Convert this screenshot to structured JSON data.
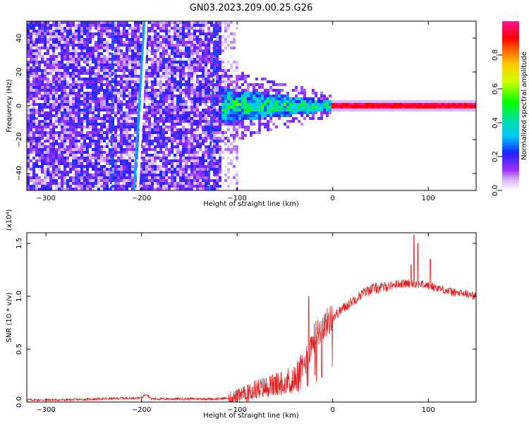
{
  "title": "GN03.2023.209.00.25.G26",
  "chart_data": [
    {
      "type": "heatmap",
      "xlabel": "Height of straight line (km)",
      "ylabel": "Frequency (Hz)",
      "xlim": [
        -320,
        150
      ],
      "ylim": [
        -50,
        50
      ],
      "x_ticks": [
        -300,
        -200,
        -100,
        0,
        100
      ],
      "y_ticks": [
        -40,
        -20,
        0,
        20,
        40
      ],
      "x_tick_labels": [
        "−300",
        "−200",
        "−100",
        "0",
        "100"
      ],
      "y_tick_labels": [
        "−40",
        "−20",
        "0",
        "20",
        "40"
      ],
      "colorbar": {
        "label": "Normalized spectral amplitude",
        "range": [
          0,
          1
        ],
        "ticks": [
          0.0,
          0.2,
          0.4,
          0.6,
          0.8
        ],
        "tick_labels": [
          "0.0",
          "0.2",
          "0.4",
          "0.6",
          "0.8"
        ],
        "colormap": [
          "#ffffff",
          "#9b30ff",
          "#2020ff",
          "#00c8ff",
          "#00ff00",
          "#ffff00",
          "#ff8000",
          "#ff0000",
          "#ff1493"
        ]
      },
      "regions": [
        {
          "x_range": [
            -320,
            -115
          ],
          "freq_range": [
            -50,
            50
          ],
          "amplitude": "0.1-0.3",
          "description_key": "broadband noise"
        },
        {
          "x_range": [
            -115,
            -100
          ],
          "freq_range": [
            -50,
            50
          ],
          "amplitude": "0.05-0.15"
        },
        {
          "x_range": [
            -115,
            0
          ],
          "freq_center": 0,
          "freq_halfwidth_start": 10,
          "freq_halfwidth_end": 3,
          "amplitude": "0.3-0.6"
        },
        {
          "x_range": [
            0,
            150
          ],
          "freq_center": 0,
          "freq_halfwidth": 2,
          "amplitude": "0.9-1.0"
        }
      ],
      "streaks": [
        {
          "x_start": -197,
          "x_end": -208,
          "amplitude": 0.35
        },
        {
          "x_start": -230,
          "x_end": -232,
          "amplitude": 0.25
        },
        {
          "x_start": -122,
          "x_end": -130,
          "amplitude": 0.25
        }
      ]
    },
    {
      "type": "line",
      "xlabel": "Height of straight line (km)",
      "ylabel": "SNR (10 * v/v)",
      "y_multiplier": "(x10⁴)",
      "xlim": [
        -320,
        150
      ],
      "ylim": [
        0,
        1.6
      ],
      "x_ticks": [
        -300,
        -200,
        -100,
        0,
        100
      ],
      "x_tick_labels": [
        "−300",
        "−200",
        "−100",
        "0",
        "100"
      ],
      "y_ticks": [
        0.0,
        0.5,
        1.0,
        1.5
      ],
      "y_tick_labels": [
        "0.0",
        "0.5",
        "1.0",
        "1.5"
      ],
      "color": "#e02020",
      "series": [
        {
          "x": [
            -320,
            -280,
            -240,
            -200,
            -195,
            -190,
            -150,
            -120,
            -105,
            -100,
            -90,
            -80,
            -70,
            -60,
            -50,
            -40,
            -30,
            -20,
            -10,
            0,
            10,
            20,
            30,
            40,
            50,
            60,
            70,
            80,
            90,
            100,
            110,
            120,
            130,
            140,
            150
          ],
          "values": [
            0.02,
            0.02,
            0.03,
            0.04,
            0.08,
            0.03,
            0.03,
            0.03,
            0.04,
            0.05,
            0.08,
            0.12,
            0.14,
            0.16,
            0.19,
            0.22,
            0.35,
            0.6,
            0.72,
            0.8,
            0.88,
            0.95,
            1.02,
            1.07,
            1.08,
            1.1,
            1.12,
            1.12,
            1.12,
            1.1,
            1.08,
            1.05,
            1.03,
            1.02,
            1.0
          ]
        }
      ],
      "spikes": [
        {
          "x": -25,
          "value": 1.0
        },
        {
          "x": 82,
          "value": 1.3
        },
        {
          "x": 85,
          "value": 1.58
        },
        {
          "x": 89,
          "value": 1.5
        },
        {
          "x": 102,
          "value": 1.35
        }
      ]
    }
  ]
}
